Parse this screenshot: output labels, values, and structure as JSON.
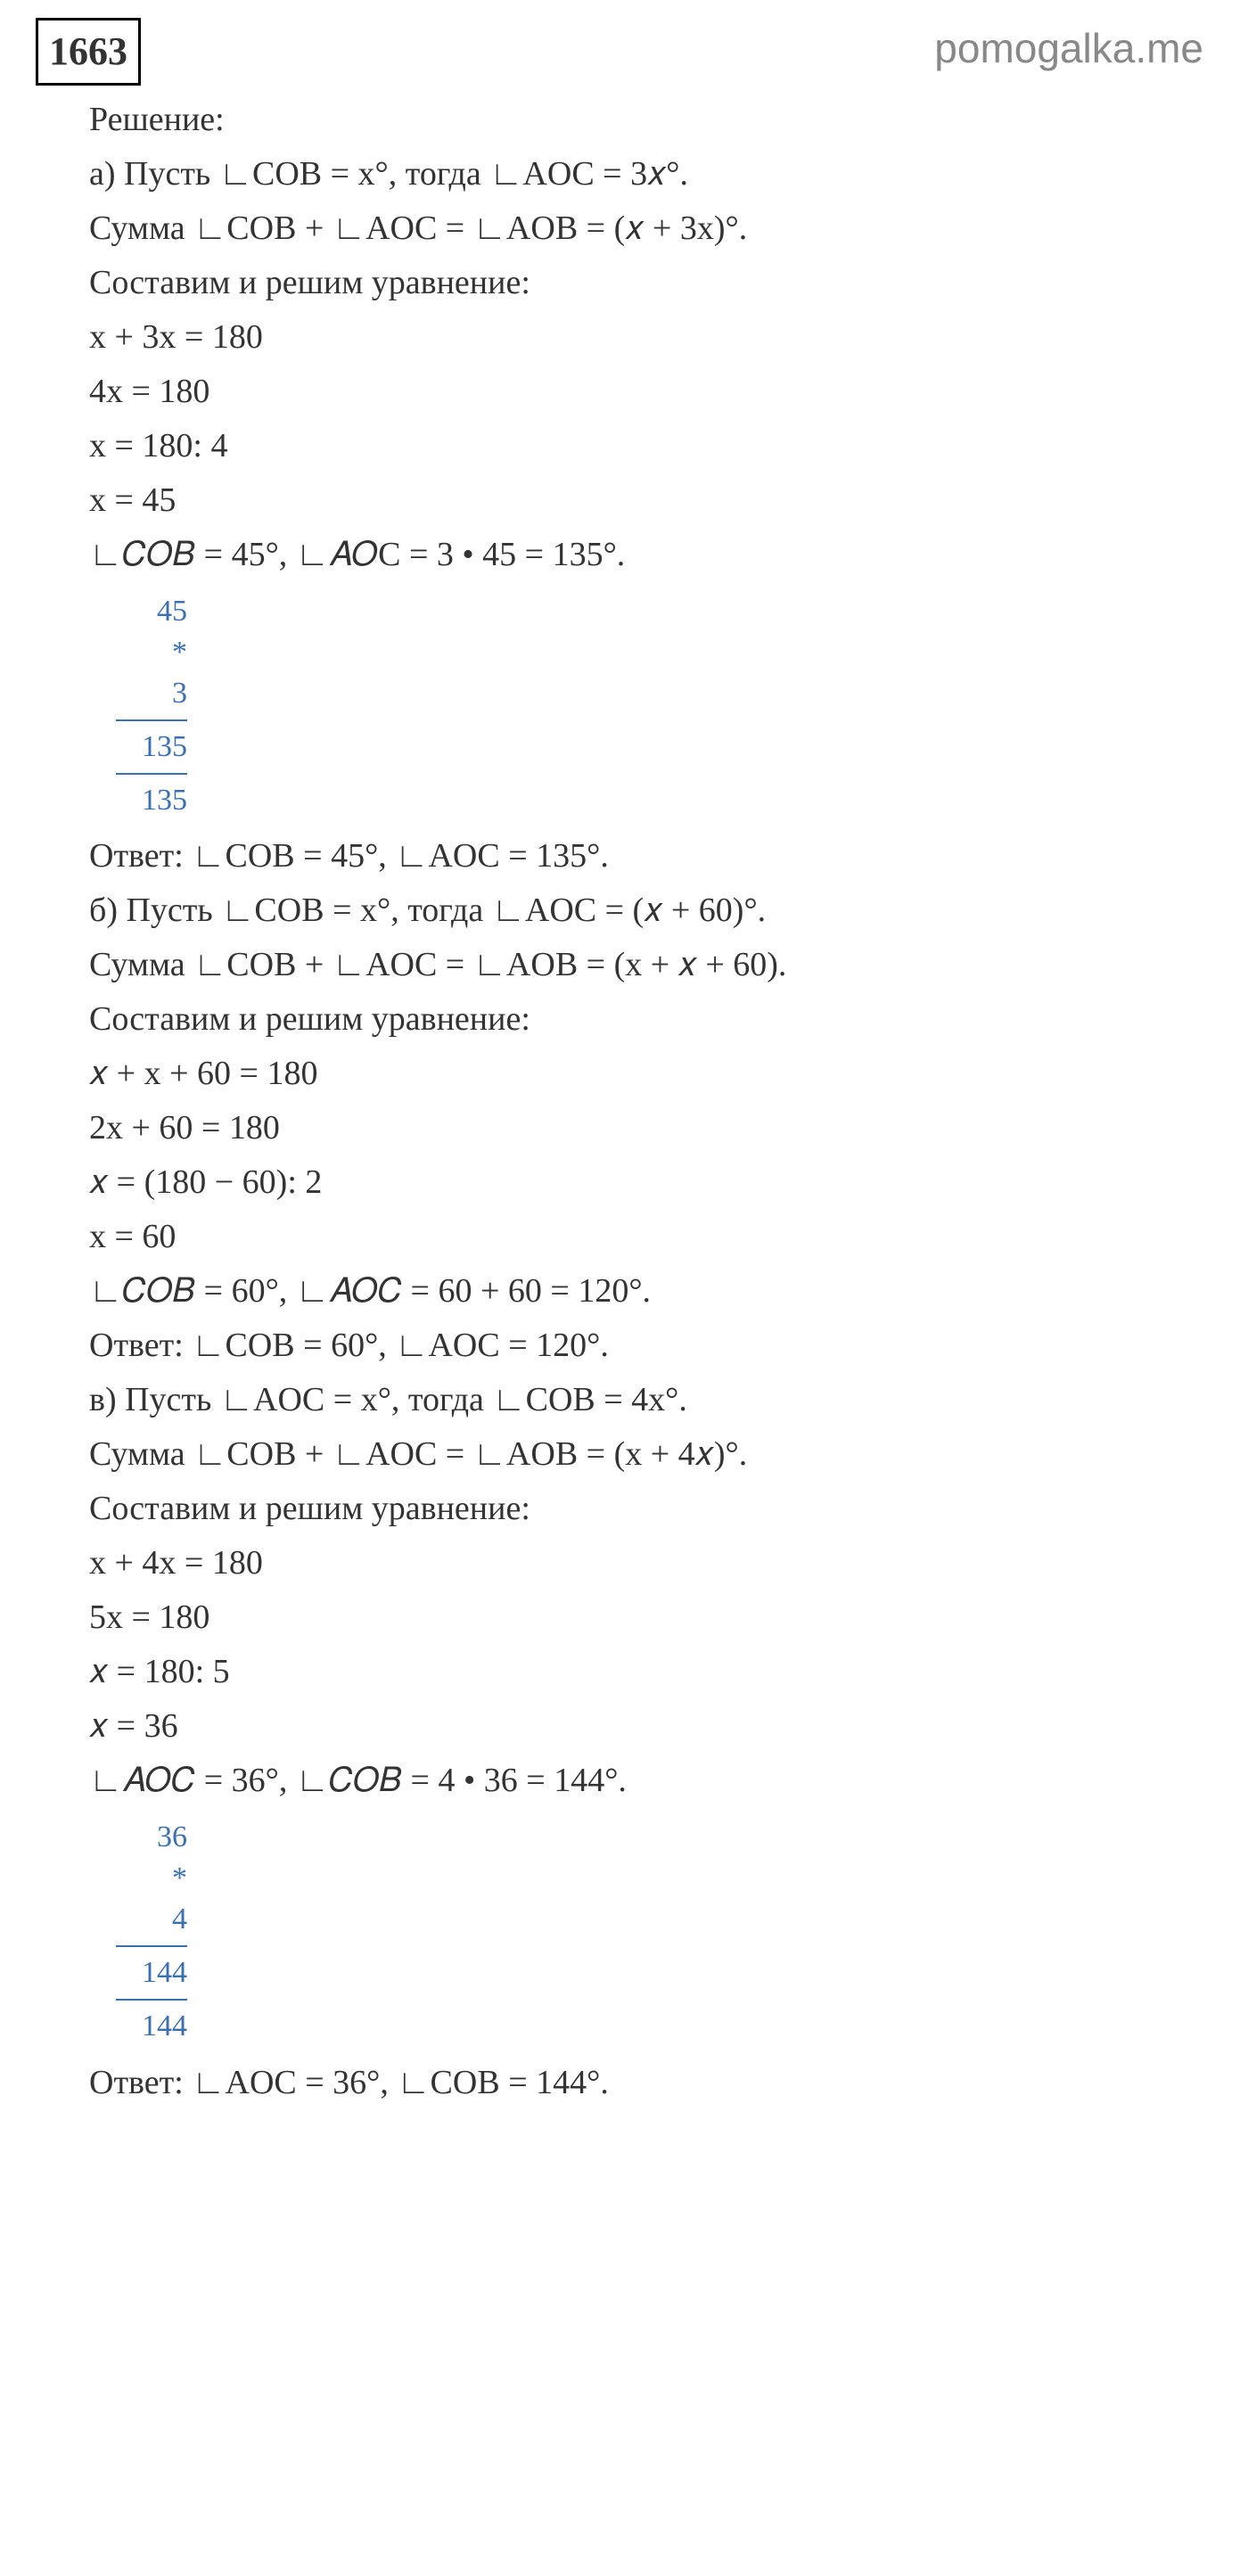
{
  "watermark": "pomogalka.me",
  "problemNumber": "1663",
  "solutionLabel": "Решение:",
  "partA": {
    "line1": "а) Пусть ∟COB = x°, тогда ∟AOC = 3𝑥°.",
    "line2": "Сумма ∟COB + ∟AOC = ∟AOB = (𝑥 + 3x)°.",
    "line3": "Составим и решим уравнение:",
    "eq1": "x + 3x = 180",
    "eq2": "4x = 180",
    "eq3": "x = 180: 4",
    "eq4": "x = 45",
    "result": "∟𝐶𝑂𝐵 = 45°, ∟𝐴𝑂C = 3 • 45 = 135°.",
    "calc": {
      "n1": "45",
      "op": "*",
      "n2": "3",
      "r1": "135",
      "r2": "135"
    },
    "answer": "Ответ: ∟COB = 45°, ∟AOC = 135°."
  },
  "partB": {
    "line1": "б) Пусть ∟COB = x°, тогда ∟AOC = (𝑥 + 60)°.",
    "line2": "Сумма ∟COB + ∟AOC = ∟AOB = (x + 𝑥 + 60).",
    "line3": "Составим и решим уравнение:",
    "eq1": "𝑥 + x + 60 = 180",
    "eq2": "2x + 60 = 180",
    "eq3": "𝑥 = (180 − 60): 2",
    "eq4": "x = 60",
    "result": "∟𝐶𝑂𝐵 = 60°, ∟𝐴𝑂𝐶 = 60 + 60 = 120°.",
    "answer": "Ответ: ∟COB = 60°, ∟AOC = 120°."
  },
  "partC": {
    "line1": "в) Пусть ∟AOC = x°, тогда ∟COB = 4x°.",
    "line2": "Сумма ∟COB + ∟AOC = ∟AOB = (x + 4𝑥)°.",
    "line3": "Составим и решим уравнение:",
    "eq1": "x + 4x = 180",
    "eq2": "5x = 180",
    "eq3": "𝑥 = 180: 5",
    "eq4": "𝑥 = 36",
    "result": "∟𝐴𝑂𝐶 = 36°, ∟𝐶𝑂𝐵 = 4 • 36 = 144°.",
    "calc": {
      "n1": "36",
      "op": "*",
      "n2": "4",
      "r1": "144",
      "r2": "144"
    },
    "answer": "Ответ: ∟AOC = 36°, ∟COB = 144°."
  },
  "colors": {
    "text": "#333333",
    "calcBlue": "#3a6fb0",
    "watermark": "#888888",
    "border": "#000000",
    "background": "#ffffff"
  }
}
